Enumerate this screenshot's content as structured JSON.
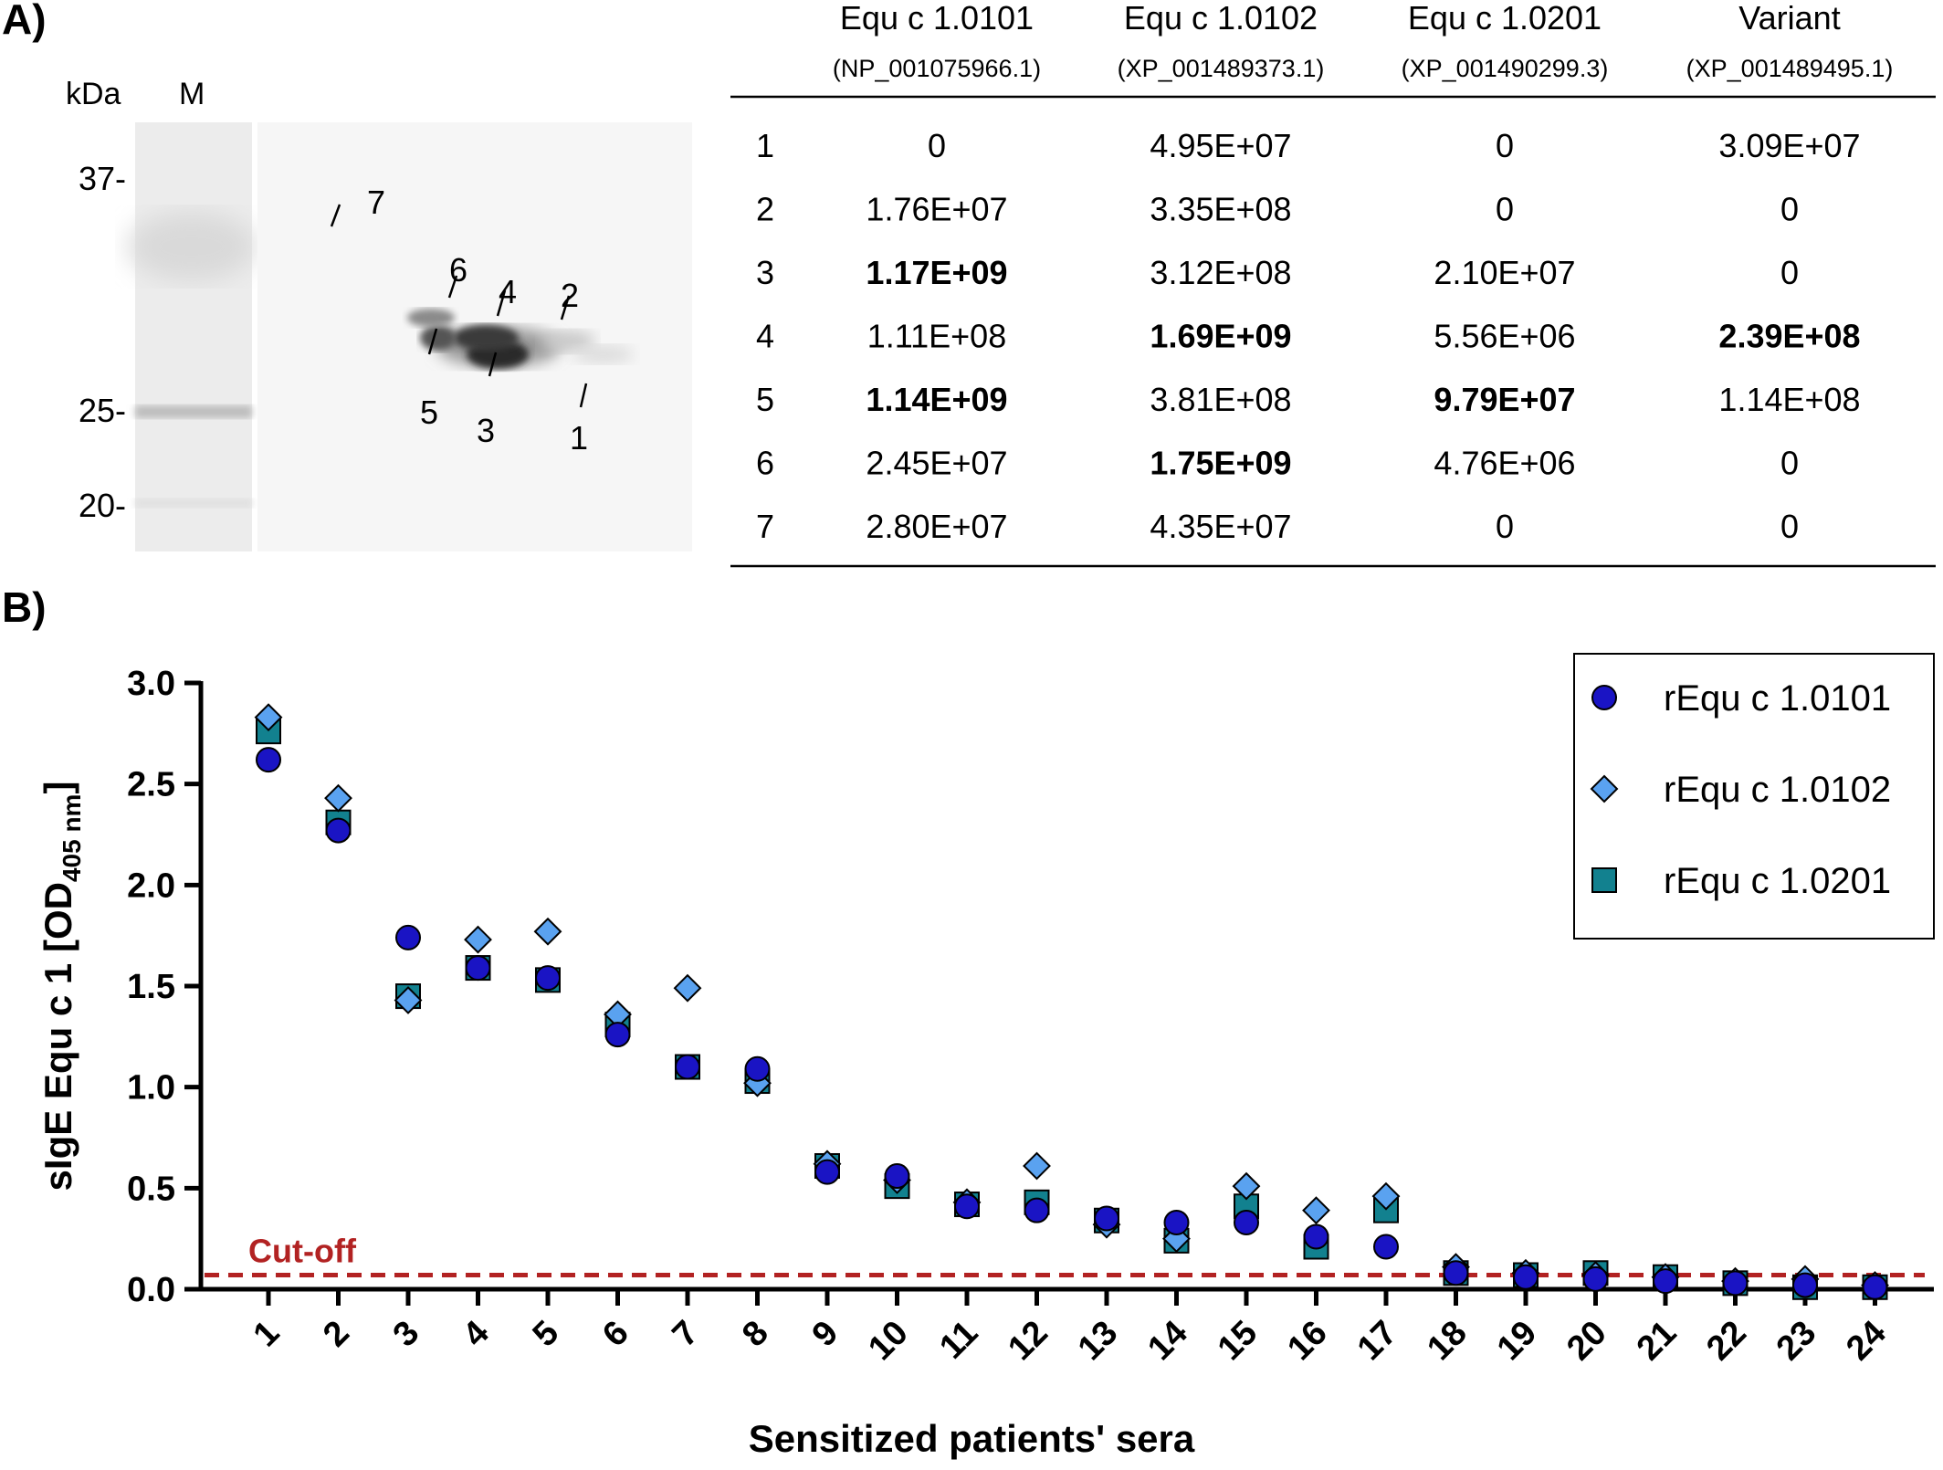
{
  "panel_a_label": "A)",
  "panel_b_label": "B)",
  "gel": {
    "kda_label": "kDa",
    "marker_label": "M",
    "markers": [
      "37-",
      "25-",
      "20-"
    ],
    "spots": [
      "1",
      "2",
      "3",
      "4",
      "5",
      "6",
      "7"
    ]
  },
  "table": {
    "columns": [
      {
        "name": "Equ c 1.0101",
        "accession": "(NP_001075966.1)"
      },
      {
        "name": "Equ c 1.0102",
        "accession": "(XP_001489373.1)"
      },
      {
        "name": "Equ c 1.0201",
        "accession": "(XP_001490299.3)"
      },
      {
        "name": "Variant",
        "accession": "(XP_001489495.1)"
      }
    ],
    "rows": [
      {
        "id": "1",
        "cells": [
          "0",
          "4.95E+07",
          "0",
          "3.09E+07"
        ],
        "bold": [
          false,
          false,
          false,
          false
        ]
      },
      {
        "id": "2",
        "cells": [
          "1.76E+07",
          "3.35E+08",
          "0",
          "0"
        ],
        "bold": [
          false,
          false,
          false,
          false
        ]
      },
      {
        "id": "3",
        "cells": [
          "1.17E+09",
          "3.12E+08",
          "2.10E+07",
          "0"
        ],
        "bold": [
          true,
          false,
          false,
          false
        ]
      },
      {
        "id": "4",
        "cells": [
          "1.11E+08",
          "1.69E+09",
          "5.56E+06",
          "2.39E+08"
        ],
        "bold": [
          false,
          true,
          false,
          true
        ]
      },
      {
        "id": "5",
        "cells": [
          "1.14E+09",
          "3.81E+08",
          "9.79E+07",
          "1.14E+08"
        ],
        "bold": [
          true,
          false,
          true,
          false
        ]
      },
      {
        "id": "6",
        "cells": [
          "2.45E+07",
          "1.75E+09",
          "4.76E+06",
          "0"
        ],
        "bold": [
          false,
          true,
          false,
          false
        ]
      },
      {
        "id": "7",
        "cells": [
          "2.80E+07",
          "4.35E+07",
          "0",
          "0"
        ],
        "bold": [
          false,
          false,
          false,
          false
        ]
      }
    ]
  },
  "chart_data": {
    "type": "scatter",
    "xlabel": "Sensitized patients' sera",
    "ylabel_main": "sIgE Equ c 1 [OD",
    "ylabel_sub": "405 nm",
    "ylabel_end": "]",
    "categories": [
      "1",
      "2",
      "3",
      "4",
      "5",
      "6",
      "7",
      "8",
      "9",
      "10",
      "11",
      "12",
      "13",
      "14",
      "15",
      "16",
      "17",
      "18",
      "19",
      "20",
      "21",
      "22",
      "23",
      "24"
    ],
    "ylim": [
      0,
      3.0
    ],
    "yticks": [
      "0.0",
      "0.5",
      "1.0",
      "1.5",
      "2.0",
      "2.5",
      "3.0"
    ],
    "cutoff": {
      "label": "Cut-off",
      "value": 0.07,
      "color": "#b22222"
    },
    "legend_position": "top-right",
    "series": [
      {
        "name": "rEqu c 1.0101",
        "marker": "circle",
        "color": "#1a14c4",
        "values": [
          2.62,
          2.27,
          1.74,
          1.59,
          1.54,
          1.26,
          1.1,
          1.09,
          0.58,
          0.56,
          0.41,
          0.39,
          0.35,
          0.33,
          0.33,
          0.26,
          0.21,
          0.08,
          0.06,
          0.05,
          0.04,
          0.03,
          0.02,
          0.01
        ]
      },
      {
        "name": "rEqu c 1.0102",
        "marker": "diamond",
        "color": "#5aa2f0",
        "values": [
          2.83,
          2.43,
          1.43,
          1.73,
          1.77,
          1.36,
          1.49,
          1.02,
          0.62,
          0.54,
          0.43,
          0.61,
          0.32,
          0.25,
          0.51,
          0.39,
          0.46,
          0.11,
          0.08,
          0.07,
          0.06,
          0.04,
          0.05,
          0.02
        ]
      },
      {
        "name": "rEqu c 1.0201",
        "marker": "square",
        "color": "#12818f",
        "values": [
          2.76,
          2.31,
          1.45,
          1.59,
          1.53,
          1.31,
          1.1,
          1.03,
          0.61,
          0.51,
          0.42,
          0.43,
          0.34,
          0.24,
          0.41,
          0.21,
          0.39,
          0.08,
          0.07,
          0.08,
          0.06,
          0.03,
          0.01,
          0.01
        ]
      }
    ]
  }
}
